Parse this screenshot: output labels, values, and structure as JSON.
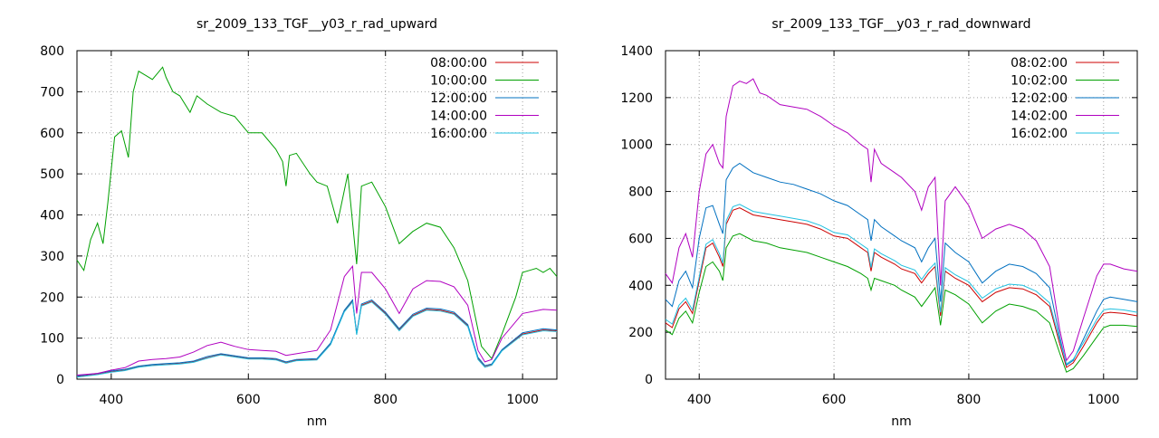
{
  "chart_data": [
    {
      "type": "line",
      "title": "sr_2009_133_TGF__y03_r_rad_upward",
      "xlabel": "nm",
      "ylabel": "",
      "xlim": [
        350,
        1050
      ],
      "ylim": [
        0,
        800
      ],
      "xticks": [
        400,
        600,
        800,
        1000
      ],
      "yticks": [
        0,
        100,
        200,
        300,
        400,
        500,
        600,
        700,
        800
      ],
      "grid": true,
      "legend": "top-right",
      "series": [
        {
          "name": "08:00:00",
          "color": "#cc0000",
          "x": [
            350,
            380,
            400,
            420,
            440,
            460,
            480,
            500,
            520,
            540,
            560,
            580,
            600,
            620,
            640,
            655,
            670,
            700,
            720,
            740,
            752,
            758,
            765,
            780,
            800,
            820,
            840,
            860,
            880,
            900,
            920,
            935,
            945,
            955,
            970,
            1000,
            1030,
            1050
          ],
          "y": [
            6,
            12,
            18,
            22,
            30,
            34,
            36,
            38,
            42,
            52,
            60,
            55,
            50,
            50,
            48,
            40,
            46,
            48,
            85,
            165,
            190,
            110,
            180,
            190,
            160,
            120,
            155,
            170,
            168,
            160,
            130,
            50,
            30,
            35,
            70,
            110,
            120,
            118
          ]
        },
        {
          "name": "10:00:00",
          "color": "#00a000",
          "x": [
            350,
            360,
            370,
            380,
            388,
            395,
            405,
            415,
            425,
            432,
            440,
            450,
            460,
            475,
            480,
            490,
            500,
            515,
            525,
            540,
            560,
            580,
            600,
            620,
            640,
            650,
            655,
            660,
            670,
            690,
            700,
            715,
            730,
            745,
            758,
            765,
            780,
            800,
            820,
            840,
            860,
            880,
            900,
            920,
            940,
            955,
            970,
            990,
            1000,
            1010,
            1020,
            1030,
            1040,
            1050
          ],
          "y": [
            290,
            265,
            340,
            380,
            330,
            430,
            590,
            605,
            540,
            700,
            750,
            740,
            730,
            760,
            735,
            700,
            690,
            650,
            690,
            670,
            650,
            640,
            600,
            600,
            560,
            530,
            470,
            545,
            550,
            500,
            480,
            470,
            380,
            500,
            280,
            470,
            480,
            420,
            330,
            360,
            380,
            370,
            320,
            240,
            80,
            50,
            110,
            200,
            260,
            265,
            270,
            260,
            270,
            250
          ]
        },
        {
          "name": "12:00:00",
          "color": "#0070c0",
          "x": [
            350,
            380,
            400,
            420,
            440,
            460,
            480,
            500,
            520,
            540,
            560,
            580,
            600,
            620,
            640,
            655,
            670,
            700,
            720,
            740,
            752,
            758,
            765,
            780,
            800,
            820,
            840,
            860,
            880,
            900,
            920,
            935,
            945,
            955,
            970,
            1000,
            1030,
            1050
          ],
          "y": [
            8,
            14,
            20,
            24,
            32,
            36,
            38,
            40,
            44,
            55,
            62,
            57,
            52,
            52,
            50,
            42,
            48,
            50,
            88,
            168,
            193,
            112,
            183,
            193,
            163,
            123,
            158,
            173,
            171,
            163,
            133,
            53,
            33,
            37,
            72,
            113,
            123,
            120
          ]
        },
        {
          "name": "14:00:00",
          "color": "#b000c0",
          "x": [
            350,
            380,
            400,
            420,
            440,
            460,
            480,
            500,
            520,
            540,
            560,
            580,
            600,
            620,
            640,
            655,
            670,
            700,
            720,
            740,
            752,
            758,
            765,
            780,
            800,
            820,
            840,
            860,
            880,
            900,
            920,
            935,
            945,
            955,
            970,
            1000,
            1030,
            1050
          ],
          "y": [
            10,
            14,
            22,
            28,
            44,
            48,
            50,
            54,
            66,
            82,
            90,
            80,
            72,
            70,
            68,
            58,
            62,
            70,
            120,
            250,
            275,
            160,
            260,
            260,
            220,
            160,
            220,
            240,
            238,
            225,
            180,
            70,
            42,
            48,
            100,
            160,
            170,
            168
          ]
        },
        {
          "name": "16:00:00",
          "color": "#20c0e0",
          "x": [
            350,
            380,
            400,
            420,
            440,
            460,
            480,
            500,
            520,
            540,
            560,
            580,
            600,
            620,
            640,
            655,
            670,
            700,
            720,
            740,
            752,
            758,
            765,
            780,
            800,
            820,
            840,
            860,
            880,
            900,
            920,
            935,
            945,
            955,
            970,
            1000,
            1030,
            1050
          ],
          "y": [
            5,
            11,
            17,
            21,
            29,
            33,
            35,
            37,
            41,
            51,
            59,
            54,
            49,
            49,
            47,
            39,
            45,
            47,
            84,
            164,
            188,
            108,
            178,
            188,
            158,
            118,
            153,
            168,
            166,
            158,
            128,
            48,
            29,
            34,
            69,
            108,
            118,
            116
          ]
        }
      ]
    },
    {
      "type": "line",
      "title": "sr_2009_133_TGF__y03_r_rad_downward",
      "xlabel": "nm",
      "ylabel": "",
      "xlim": [
        350,
        1050
      ],
      "ylim": [
        0,
        1400
      ],
      "xticks": [
        400,
        600,
        800,
        1000
      ],
      "yticks": [
        0,
        200,
        400,
        600,
        800,
        1000,
        1200,
        1400
      ],
      "grid": true,
      "legend": "top-right",
      "series": [
        {
          "name": "08:02:00",
          "color": "#cc0000",
          "x": [
            350,
            360,
            370,
            380,
            390,
            400,
            410,
            420,
            430,
            435,
            440,
            450,
            460,
            480,
            500,
            520,
            540,
            560,
            580,
            600,
            620,
            640,
            650,
            655,
            660,
            670,
            690,
            700,
            720,
            730,
            740,
            750,
            758,
            765,
            780,
            800,
            820,
            840,
            860,
            880,
            900,
            920,
            935,
            945,
            955,
            970,
            990,
            1000,
            1010,
            1030,
            1050
          ],
          "y": [
            240,
            220,
            300,
            330,
            280,
            420,
            560,
            580,
            520,
            480,
            660,
            720,
            730,
            700,
            690,
            680,
            670,
            660,
            640,
            610,
            600,
            560,
            540,
            460,
            540,
            520,
            490,
            470,
            450,
            410,
            450,
            480,
            270,
            460,
            430,
            400,
            330,
            370,
            390,
            385,
            360,
            310,
            150,
            50,
            70,
            140,
            240,
            280,
            285,
            280,
            270
          ]
        },
        {
          "name": "10:02:00",
          "color": "#00a000",
          "x": [
            350,
            360,
            370,
            380,
            390,
            400,
            410,
            420,
            430,
            435,
            440,
            450,
            460,
            480,
            500,
            520,
            540,
            560,
            580,
            600,
            620,
            640,
            650,
            655,
            660,
            670,
            690,
            700,
            720,
            730,
            740,
            750,
            758,
            765,
            780,
            800,
            820,
            840,
            860,
            880,
            900,
            920,
            935,
            945,
            955,
            970,
            990,
            1000,
            1010,
            1030,
            1050
          ],
          "y": [
            210,
            190,
            260,
            290,
            240,
            370,
            480,
            500,
            460,
            420,
            560,
            610,
            620,
            590,
            580,
            560,
            550,
            540,
            520,
            500,
            480,
            450,
            430,
            380,
            430,
            420,
            400,
            380,
            350,
            310,
            350,
            390,
            230,
            380,
            360,
            320,
            240,
            290,
            320,
            310,
            290,
            240,
            110,
            30,
            45,
            100,
            180,
            220,
            230,
            230,
            225
          ]
        },
        {
          "name": "12:02:00",
          "color": "#0070c0",
          "x": [
            350,
            360,
            370,
            380,
            390,
            400,
            410,
            420,
            430,
            435,
            440,
            450,
            460,
            480,
            500,
            520,
            540,
            560,
            580,
            600,
            620,
            640,
            650,
            655,
            660,
            670,
            690,
            700,
            720,
            730,
            740,
            750,
            758,
            765,
            780,
            800,
            820,
            840,
            860,
            880,
            900,
            920,
            935,
            945,
            955,
            970,
            990,
            1000,
            1010,
            1030,
            1050
          ],
          "y": [
            340,
            310,
            420,
            460,
            390,
            600,
            730,
            740,
            660,
            620,
            850,
            900,
            920,
            880,
            860,
            840,
            830,
            810,
            790,
            760,
            740,
            700,
            680,
            590,
            680,
            650,
            610,
            590,
            560,
            500,
            560,
            600,
            330,
            580,
            540,
            500,
            410,
            460,
            490,
            480,
            450,
            390,
            180,
            60,
            80,
            170,
            290,
            340,
            350,
            340,
            330
          ]
        },
        {
          "name": "14:02:00",
          "color": "#b000c0",
          "x": [
            350,
            360,
            370,
            380,
            390,
            400,
            410,
            420,
            430,
            435,
            440,
            450,
            460,
            470,
            480,
            490,
            500,
            520,
            540,
            560,
            580,
            600,
            620,
            640,
            650,
            655,
            660,
            670,
            690,
            700,
            720,
            730,
            740,
            750,
            758,
            765,
            780,
            800,
            820,
            840,
            860,
            880,
            900,
            920,
            935,
            945,
            955,
            970,
            990,
            1000,
            1010,
            1030,
            1050
          ],
          "y": [
            450,
            410,
            560,
            620,
            520,
            800,
            960,
            1000,
            920,
            900,
            1120,
            1250,
            1270,
            1260,
            1280,
            1220,
            1210,
            1170,
            1160,
            1150,
            1120,
            1080,
            1050,
            1000,
            980,
            840,
            980,
            920,
            880,
            860,
            800,
            720,
            820,
            860,
            400,
            760,
            820,
            740,
            600,
            640,
            660,
            640,
            590,
            480,
            210,
            80,
            120,
            260,
            440,
            490,
            490,
            470,
            460
          ]
        },
        {
          "name": "16:02:00",
          "color": "#20c0e0",
          "x": [
            350,
            360,
            370,
            380,
            390,
            400,
            410,
            420,
            430,
            435,
            440,
            450,
            460,
            480,
            500,
            520,
            540,
            560,
            580,
            600,
            620,
            640,
            650,
            655,
            660,
            670,
            690,
            700,
            720,
            730,
            740,
            750,
            758,
            765,
            780,
            800,
            820,
            840,
            860,
            880,
            900,
            920,
            935,
            945,
            955,
            970,
            990,
            1000,
            1010,
            1030,
            1050
          ],
          "y": [
            255,
            235,
            315,
            345,
            295,
            435,
            575,
            595,
            535,
            495,
            675,
            735,
            745,
            715,
            705,
            695,
            685,
            675,
            655,
            625,
            615,
            575,
            555,
            475,
            555,
            535,
            505,
            485,
            465,
            425,
            465,
            495,
            285,
            475,
            445,
            415,
            345,
            385,
            405,
            400,
            375,
            325,
            165,
            65,
            85,
            155,
            255,
            295,
            300,
            295,
            285
          ]
        }
      ]
    }
  ]
}
